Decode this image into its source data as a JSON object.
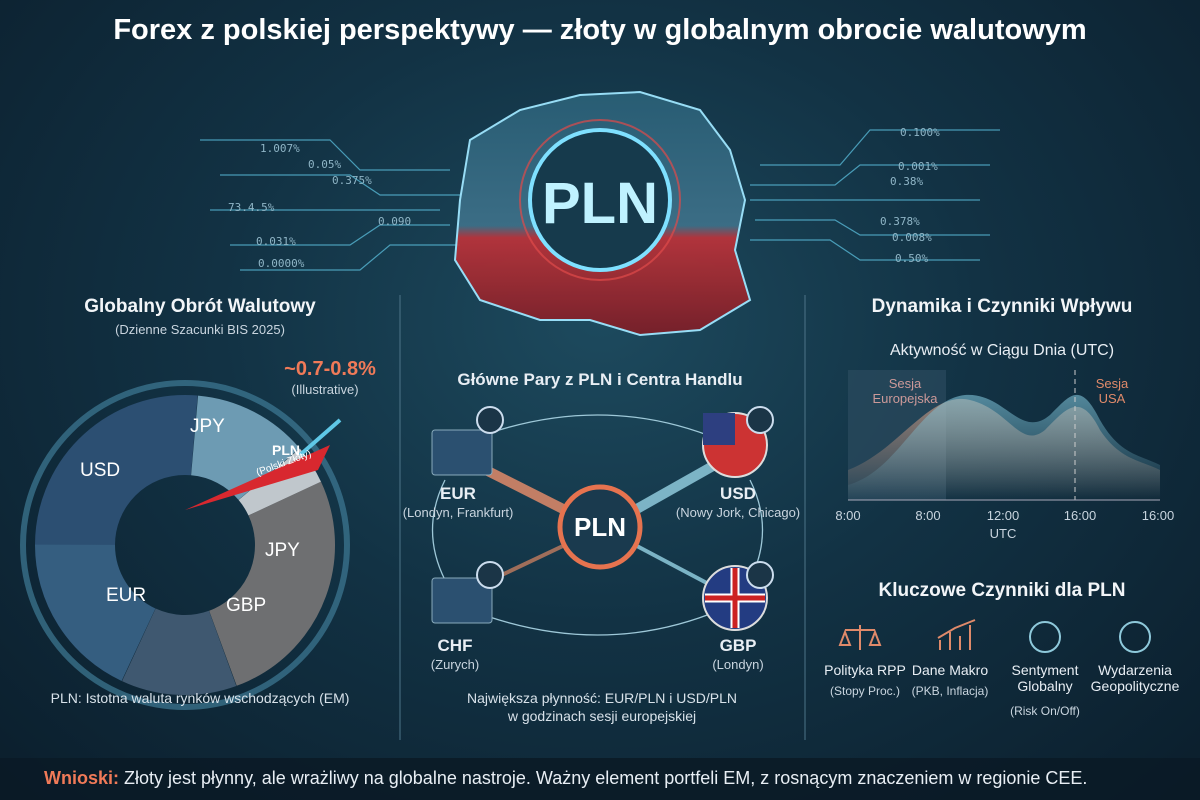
{
  "header": {
    "title": "Forex z polskiej perspektywy — złoty w globalnym obrocie walutowym"
  },
  "map": {
    "center_label": "PLN",
    "side_labels": [
      "1.007%",
      "0.05%",
      "0.375%",
      "73.4.5%",
      "0.090",
      "0.031%",
      "0.0000%",
      "0.100%",
      "0.001%",
      "0.38%",
      "0.378%",
      "0.008%",
      "0.50%"
    ]
  },
  "left_panel": {
    "title": "Globalny Obrót Walutowy",
    "subtitle": "(Dzienne Szacunki BIS 2025)",
    "callout": "~0.7-0.8%",
    "callout_note": "(Illustrative)",
    "segments": [
      "USD",
      "JPY",
      "PLN",
      "JPY",
      "GBP",
      "EUR"
    ],
    "pln_note": "(Polski Złoty)",
    "footnote": "PLN: Istotna waluta rynków wschodzących (EM)"
  },
  "middle_panel": {
    "title": "Główne Pary z PLN i Centra Handlu",
    "center": "PLN",
    "nodes": [
      {
        "label": "EUR",
        "centers": "(Londyn, Frankfurt)"
      },
      {
        "label": "USD",
        "centers": "(Nowy Jork, Chicago)"
      },
      {
        "label": "CHF",
        "centers": "(Zurych)"
      },
      {
        "label": "GBP",
        "centers": "(Londyn)"
      }
    ],
    "footnote": [
      "Największa płynność: EUR/PLN i USD/PLN",
      "w godzinach sesji europejskiej"
    ]
  },
  "right_panel": {
    "title": "Dynamika i Czynniki Wpływu",
    "chart_title": "Aktywność w Ciągu Dnia (UTC)",
    "sessions": [
      "Sesja Europejska",
      "Sesja USA"
    ],
    "x_labels": [
      "8:00",
      "8:00",
      "12:00",
      "16:00",
      "16:00"
    ],
    "x_axis_label": "UTC",
    "factors_title": "Kluczowe Czynniki dla PLN",
    "factors": [
      {
        "name": "Polityka RPP",
        "note": "(Stopy Proc.)"
      },
      {
        "name": "Dane Makro",
        "note": "(PKB, Inflacja)"
      },
      {
        "name": "Sentyment Globalny",
        "note": "(Risk On/Off)"
      },
      {
        "name": "Wydarzenia Geopolityczne",
        "note": null
      }
    ]
  },
  "footer": {
    "lead": "Wnioski:",
    "text": "Złoty jest płynny, ale wrażliwy na globalne nastroje. Ważny element portfeli EM, z rosnącym znaczeniem w regionie CEE."
  }
}
